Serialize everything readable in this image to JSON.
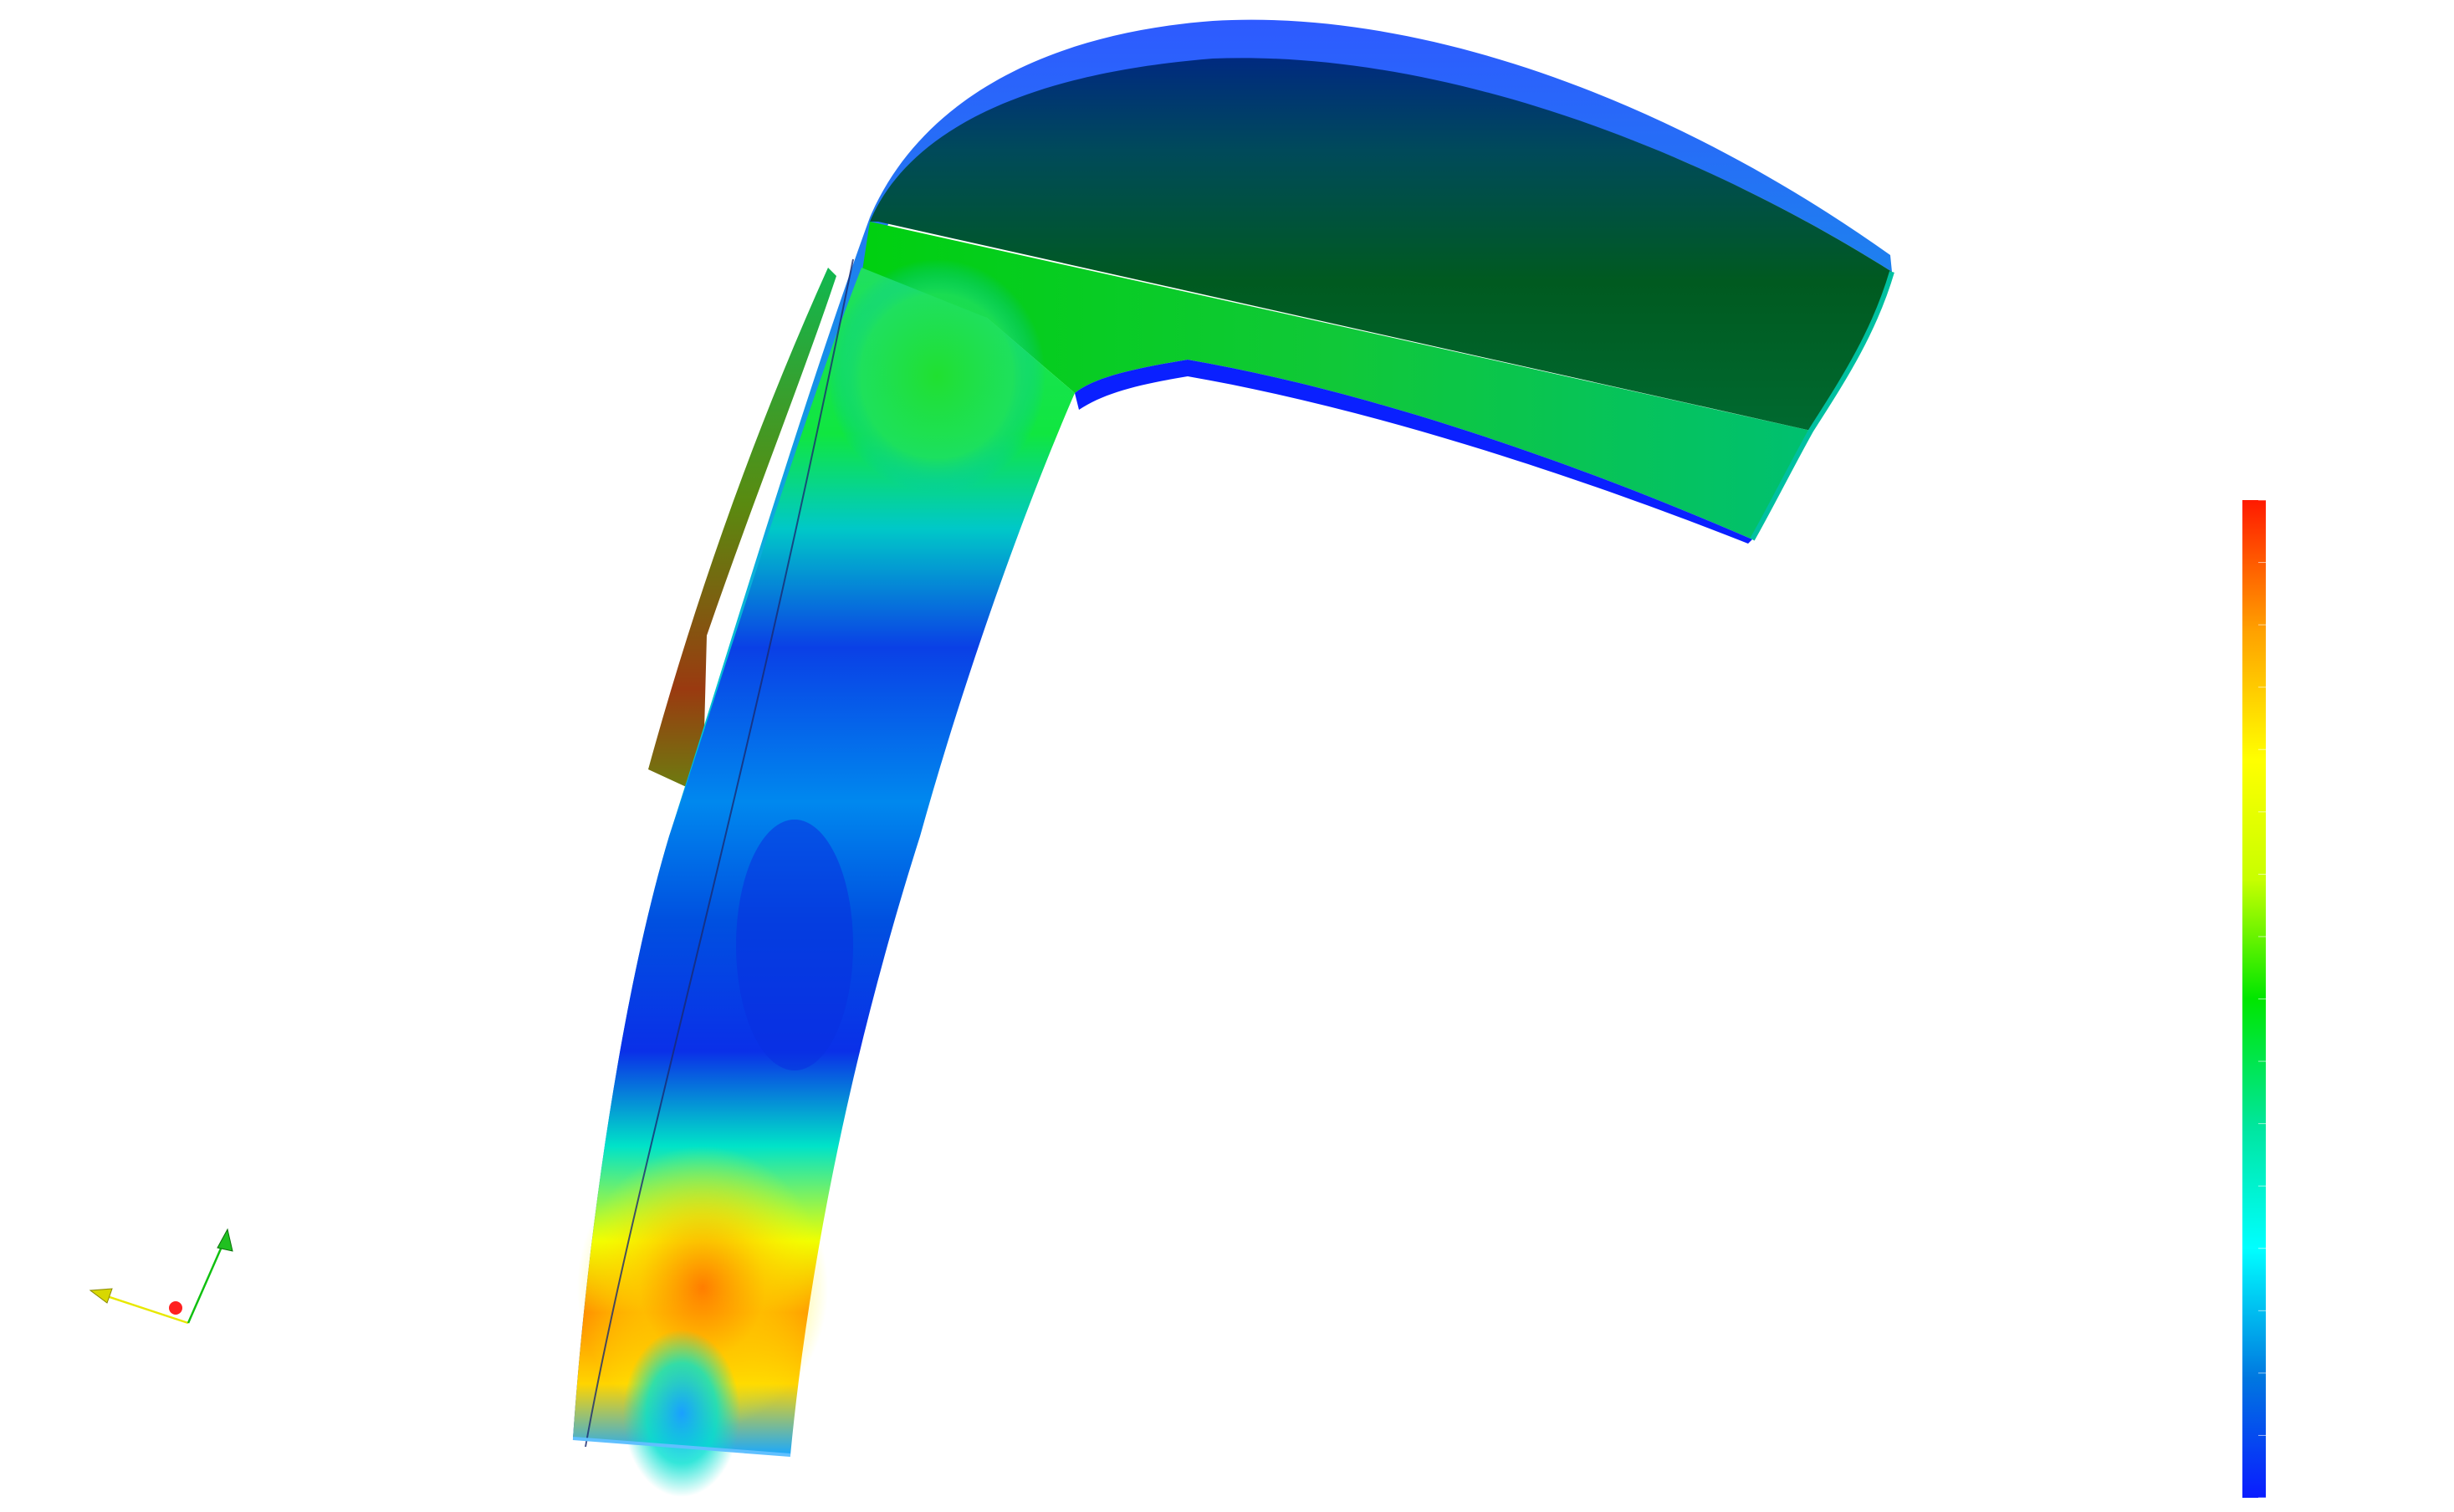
{
  "viewport": {
    "background": "#ffffff"
  },
  "colormap": {
    "name": "rainbow",
    "stops": [
      "#0a1cff",
      "#0077e0",
      "#00ffff",
      "#00e6a0",
      "#00e600",
      "#c8ff00",
      "#ffff00",
      "#ffa000",
      "#ff1a00"
    ],
    "tick_count": 16
  },
  "axes_triad": {
    "x_color": "#e8e800",
    "y_color": "#10c010",
    "z_color": "#ff2020",
    "icon": "orientation-axes-icon"
  }
}
